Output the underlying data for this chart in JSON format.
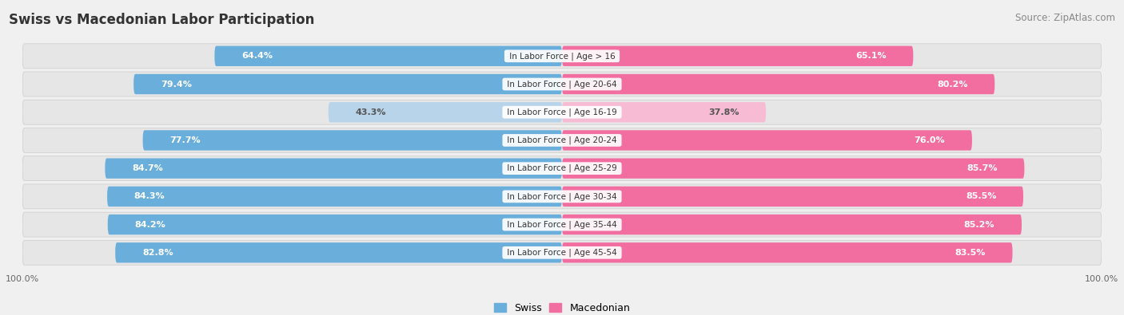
{
  "title": "Swiss vs Macedonian Labor Participation",
  "source": "Source: ZipAtlas.com",
  "categories": [
    "In Labor Force | Age > 16",
    "In Labor Force | Age 20-64",
    "In Labor Force | Age 16-19",
    "In Labor Force | Age 20-24",
    "In Labor Force | Age 25-29",
    "In Labor Force | Age 30-34",
    "In Labor Force | Age 35-44",
    "In Labor Force | Age 45-54"
  ],
  "swiss_values": [
    64.4,
    79.4,
    43.3,
    77.7,
    84.7,
    84.3,
    84.2,
    82.8
  ],
  "macedonian_values": [
    65.1,
    80.2,
    37.8,
    76.0,
    85.7,
    85.5,
    85.2,
    83.5
  ],
  "swiss_color": "#6aaedc",
  "swiss_color_light": "#b8d4ea",
  "macedonian_color": "#f26ea0",
  "macedonian_color_light": "#f7bcd3",
  "bg_color": "#f0f0f0",
  "row_bg_light": "#e8e8e8",
  "row_bg_dark": "#dedede",
  "max_value": 100.0,
  "bar_height": 0.72,
  "title_fontsize": 12,
  "source_fontsize": 8.5,
  "label_fontsize": 8,
  "category_fontsize": 7.5,
  "legend_fontsize": 9
}
